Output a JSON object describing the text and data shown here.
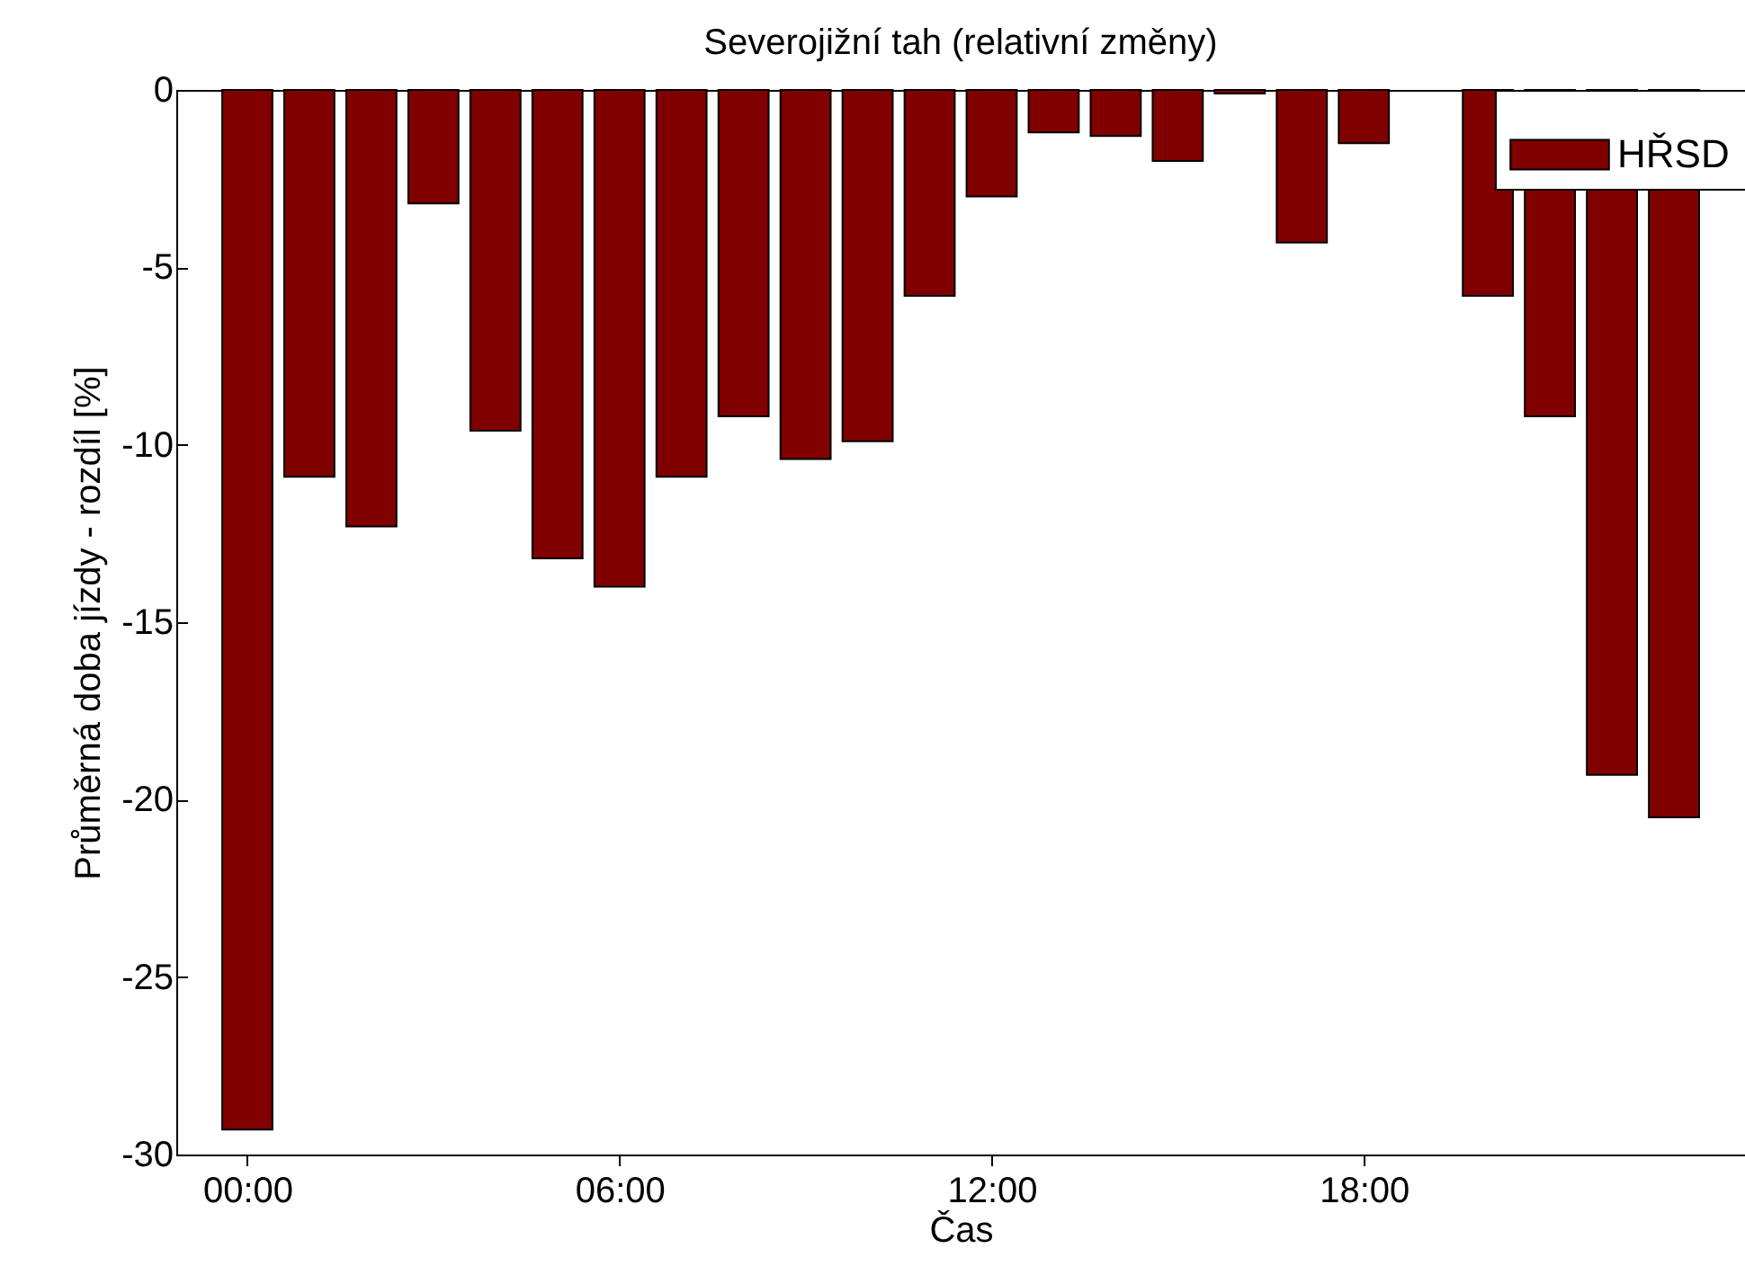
{
  "chart_data": {
    "type": "bar",
    "title": "Severojižní tah (relativní změny)",
    "xlabel": "Čas",
    "ylabel": "Průměrná doba jízdy  - rozdíl [%]",
    "x": [
      0,
      1,
      2,
      3,
      4,
      5,
      6,
      7,
      8,
      9,
      10,
      11,
      12,
      13,
      14,
      15,
      16,
      17,
      18,
      19,
      20,
      21,
      22,
      23
    ],
    "series": [
      {
        "name": "HŘSD",
        "color": "#800000",
        "values": [
          -29.3,
          -10.9,
          -12.3,
          -3.2,
          -9.6,
          -13.2,
          -14.0,
          -10.9,
          -9.2,
          -10.4,
          -9.9,
          -5.8,
          -3.0,
          -1.2,
          -1.3,
          -2.0,
          -0.1,
          -4.3,
          -1.5,
          null,
          -5.8,
          -9.2,
          -19.3,
          -20.5
        ]
      }
    ],
    "xlim": [
      -1,
      24
    ],
    "xticks": [
      {
        "value": 0,
        "label": "00:00"
      },
      {
        "value": 6,
        "label": "06:00"
      },
      {
        "value": 12,
        "label": "12:00"
      },
      {
        "value": 18,
        "label": "18:00"
      }
    ],
    "ylim": [
      -30,
      0
    ],
    "yticks": [
      -30,
      -25,
      -20,
      -15,
      -10,
      -5,
      0
    ],
    "grid": false,
    "legend": "top right"
  }
}
